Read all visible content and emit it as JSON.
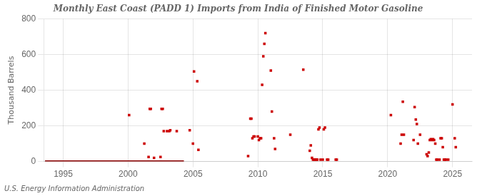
{
  "chart_data": {
    "type": "scatter",
    "title": "Monthly East Coast (PADD 1) Imports from India of Finished Motor Gasoline",
    "ylabel": "Thousand Barrels",
    "annotations": [
      "U.S. Energy Information Administration"
    ],
    "xlim": [
      1993.5,
      2026.5
    ],
    "xticks": [
      1995,
      2000,
      2005,
      2010,
      2015,
      2020,
      2025
    ],
    "ylim": [
      0,
      800
    ],
    "yticks": [
      0,
      200,
      400,
      600,
      800
    ],
    "grid": true,
    "series": [
      {
        "type": "scatter",
        "marker": "square",
        "color": "#cc0000",
        "x": [
          2000.08,
          2001.25,
          2001.58,
          2001.67,
          2001.75,
          2002.0,
          2002.5,
          2002.58,
          2002.67,
          2002.75,
          2003.0,
          2003.17,
          2003.25,
          2003.75,
          2004.75,
          2005.0,
          2005.08,
          2005.33,
          2005.42,
          2009.25,
          2009.42,
          2009.5,
          2009.58,
          2009.67,
          2009.75,
          2010.0,
          2010.08,
          2010.17,
          2010.25,
          2010.33,
          2010.42,
          2010.5,
          2010.58,
          2011.0,
          2011.08,
          2011.25,
          2011.33,
          2012.5,
          2013.5,
          2014.0,
          2014.08,
          2014.17,
          2014.25,
          2014.33,
          2014.42,
          2014.5,
          2014.58,
          2014.67,
          2014.75,
          2014.83,
          2015.0,
          2015.08,
          2015.17,
          2015.33,
          2015.42,
          2016.0,
          2016.08,
          2020.25,
          2021.0,
          2021.08,
          2021.17,
          2021.25,
          2022.0,
          2022.08,
          2022.17,
          2022.25,
          2022.33,
          2022.5,
          2023.0,
          2023.08,
          2023.17,
          2023.25,
          2023.33,
          2023.42,
          2023.5,
          2023.58,
          2023.67,
          2023.75,
          2023.83,
          2024.0,
          2024.08,
          2024.17,
          2024.25,
          2024.33,
          2024.42,
          2024.5,
          2024.67,
          2025.0,
          2025.17,
          2025.25
        ],
        "values": [
          260,
          100,
          25,
          295,
          295,
          20,
          25,
          295,
          295,
          170,
          170,
          170,
          175,
          170,
          175,
          100,
          505,
          450,
          65,
          30,
          240,
          240,
          130,
          140,
          140,
          140,
          120,
          130,
          130,
          430,
          590,
          660,
          720,
          510,
          280,
          130,
          70,
          150,
          515,
          60,
          90,
          20,
          10,
          10,
          10,
          10,
          10,
          180,
          190,
          10,
          10,
          180,
          190,
          10,
          10,
          10,
          10,
          260,
          100,
          150,
          335,
          150,
          120,
          305,
          235,
          210,
          100,
          150,
          40,
          30,
          50,
          120,
          125,
          120,
          125,
          120,
          100,
          10,
          10,
          10,
          130,
          130,
          80,
          10,
          10,
          10,
          10,
          320,
          130,
          80
        ]
      },
      {
        "type": "line",
        "line_style": "solid",
        "color": "#8b0000",
        "x": [
          1993.6,
          2004.3
        ],
        "values": [
          0,
          0
        ]
      }
    ]
  }
}
